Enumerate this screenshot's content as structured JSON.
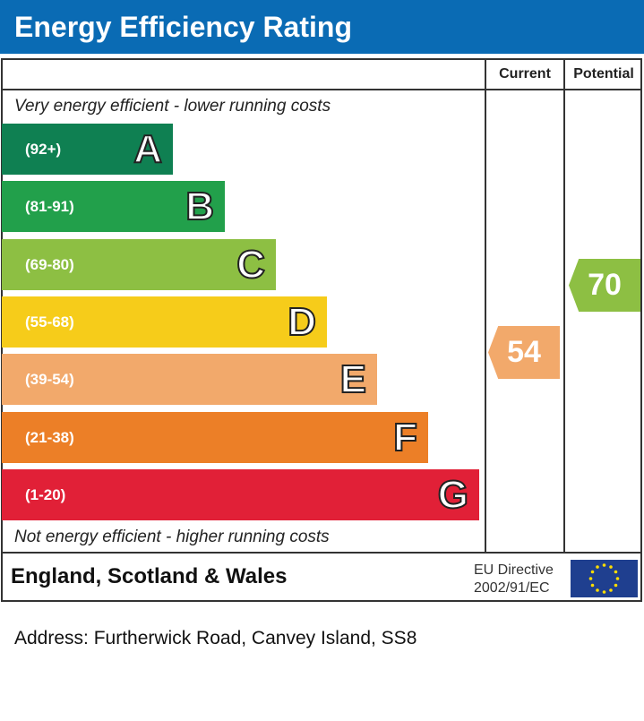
{
  "title": "Energy Efficiency Rating",
  "chart_data": {
    "type": "bar",
    "columns": [
      "Current",
      "Potential"
    ],
    "top_note": "Very energy efficient - lower running costs",
    "bottom_note": "Not energy efficient - higher running costs",
    "bands": [
      {
        "range": "(92+)",
        "letter": "A",
        "color": "#0f8052"
      },
      {
        "range": "(81-91)",
        "letter": "B",
        "color": "#22a04b"
      },
      {
        "range": "(69-80)",
        "letter": "C",
        "color": "#8dbf43"
      },
      {
        "range": "(55-68)",
        "letter": "D",
        "color": "#f6cc1a"
      },
      {
        "range": "(39-54)",
        "letter": "E",
        "color": "#f2a96b"
      },
      {
        "range": "(21-38)",
        "letter": "F",
        "color": "#ec7f27"
      },
      {
        "range": "(1-20)",
        "letter": "G",
        "color": "#e12037"
      }
    ],
    "current": {
      "value": "54",
      "band": "E",
      "color": "#f2a96b"
    },
    "potential": {
      "value": "70",
      "band": "C",
      "color": "#8dbf43"
    }
  },
  "footer": {
    "region": "England, Scotland & Wales",
    "directive_line1": "EU Directive",
    "directive_line2": "2002/91/EC",
    "flag_icon": "eu-flag-icon"
  },
  "address": "Address: Furtherwick Road, Canvey Island, SS8"
}
